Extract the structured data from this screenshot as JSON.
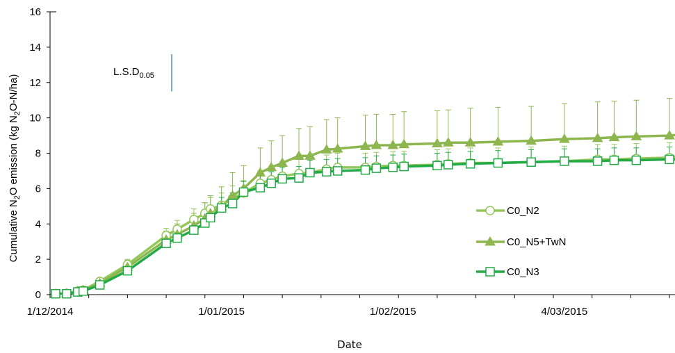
{
  "chart_data": {
    "type": "line",
    "title": "",
    "xlabel": "Date",
    "ylabel_parts": [
      "Cumulative  N",
      "2",
      "O emission (kg N",
      "2",
      "O-N/ha)"
    ],
    "ylim": [
      0,
      16
    ],
    "yticks": [
      0,
      2,
      4,
      6,
      8,
      10,
      12,
      14,
      16
    ],
    "xlim": [
      "2014-12-01",
      "2015-03-24"
    ],
    "xticks": [
      {
        "date": "2014-12-01",
        "label": "1/12/2014"
      },
      {
        "date": "2015-01-01",
        "label": "1/01/2015"
      },
      {
        "date": "2015-02-01",
        "label": "1/02/2015"
      },
      {
        "date": "2015-03-04",
        "label": "4/03/2015"
      }
    ],
    "lsd": {
      "label_main": "L.S.D",
      "label_sub": "0.05",
      "date": "2014-12-23",
      "y_from": 11.5,
      "y_to": 13.6
    },
    "x": [
      "2014-12-02",
      "2014-12-04",
      "2014-12-06",
      "2014-12-07",
      "2014-12-10",
      "2014-12-15",
      "2014-12-22",
      "2014-12-24",
      "2014-12-27",
      "2014-12-29",
      "2014-12-30",
      "2015-01-01",
      "2015-01-03",
      "2015-01-05",
      "2015-01-08",
      "2015-01-10",
      "2015-01-12",
      "2015-01-15",
      "2015-01-17",
      "2015-01-20",
      "2015-01-22",
      "2015-01-27",
      "2015-01-29",
      "2015-02-01",
      "2015-02-03",
      "2015-02-09",
      "2015-02-11",
      "2015-02-15",
      "2015-02-20",
      "2015-02-26",
      "2015-03-04",
      "2015-03-10",
      "2015-03-13",
      "2015-03-17",
      "2015-03-23",
      "2015-03-25"
    ],
    "series": [
      {
        "name": "C0_N2",
        "color": "#92c85a",
        "marker": "circle",
        "values": [
          0.05,
          0.07,
          0.2,
          0.25,
          0.75,
          1.7,
          3.35,
          3.7,
          4.25,
          4.6,
          4.85,
          5.05,
          5.45,
          5.75,
          6.3,
          6.5,
          6.7,
          6.85,
          6.9,
          7.1,
          7.2,
          7.2,
          7.25,
          7.3,
          7.3,
          7.35,
          7.4,
          7.45,
          7.45,
          7.5,
          7.55,
          7.65,
          7.65,
          7.7,
          7.75,
          7.8
        ],
        "errors": [
          0.05,
          0.05,
          0.1,
          0.1,
          0.15,
          0.3,
          0.4,
          0.5,
          0.6,
          0.6,
          0.65,
          0.7,
          0.7,
          0.7,
          0.7,
          0.75,
          0.8,
          0.8,
          0.8,
          0.8,
          0.8,
          0.8,
          0.8,
          0.8,
          0.8,
          0.85,
          0.85,
          0.85,
          0.85,
          0.85,
          0.85,
          0.85,
          0.85,
          0.85,
          0.85,
          0.85
        ]
      },
      {
        "name": "C0_N5+TwN",
        "color": "#8db64e",
        "marker": "triangle",
        "values": [
          0.05,
          0.07,
          0.2,
          0.25,
          0.65,
          1.55,
          3.1,
          3.4,
          3.9,
          4.3,
          4.6,
          5.0,
          5.6,
          6.0,
          6.9,
          7.2,
          7.45,
          7.85,
          7.85,
          8.2,
          8.25,
          8.4,
          8.45,
          8.45,
          8.5,
          8.55,
          8.6,
          8.6,
          8.65,
          8.7,
          8.8,
          8.85,
          8.9,
          8.95,
          9.0,
          9.05
        ],
        "errors": [
          0.05,
          0.05,
          0.1,
          0.1,
          0.2,
          0.4,
          0.5,
          0.6,
          0.7,
          0.9,
          1.0,
          1.1,
          1.3,
          1.3,
          1.4,
          1.5,
          1.55,
          1.55,
          1.65,
          1.7,
          1.75,
          1.75,
          1.75,
          1.75,
          1.85,
          1.85,
          1.85,
          1.95,
          1.95,
          1.95,
          2.0,
          2.05,
          2.05,
          2.05,
          2.1,
          2.1
        ]
      },
      {
        "name": "C0_N3",
        "color": "#22aa47",
        "marker": "square",
        "values": [
          0.05,
          0.05,
          0.15,
          0.2,
          0.55,
          1.35,
          2.9,
          3.2,
          3.65,
          4.05,
          4.35,
          4.9,
          5.15,
          5.8,
          6.05,
          6.3,
          6.55,
          6.6,
          6.9,
          6.95,
          7.0,
          7.05,
          7.15,
          7.2,
          7.25,
          7.3,
          7.35,
          7.4,
          7.45,
          7.5,
          7.55,
          7.55,
          7.6,
          7.6,
          7.65,
          7.65
        ],
        "errors": [
          0.05,
          0.05,
          0.1,
          0.1,
          0.15,
          0.3,
          0.35,
          0.4,
          0.45,
          0.5,
          0.55,
          0.6,
          0.6,
          0.6,
          0.65,
          0.65,
          0.65,
          0.65,
          0.7,
          0.7,
          0.7,
          0.7,
          0.7,
          0.7,
          0.7,
          0.7,
          0.7,
          0.7,
          0.7,
          0.7,
          0.7,
          0.7,
          0.7,
          0.7,
          0.7,
          0.7
        ]
      }
    ],
    "legend": {
      "placement": "right"
    },
    "colors": {
      "axis": "#000000",
      "lsd_bar": "#4a86a8"
    }
  }
}
